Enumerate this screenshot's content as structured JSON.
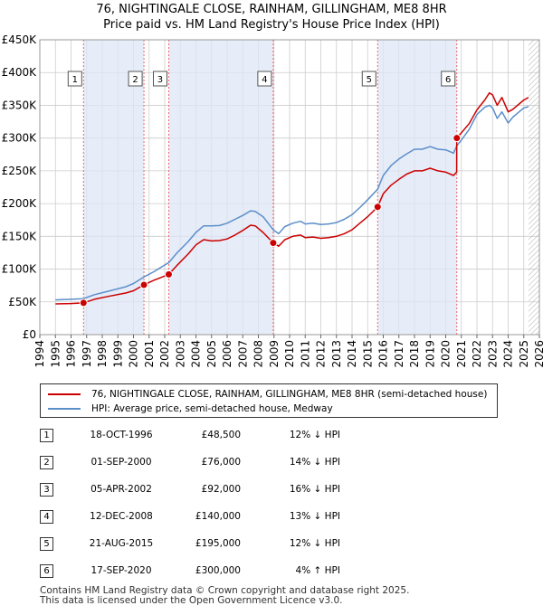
{
  "title_line1": "76, NIGHTINGALE CLOSE, RAINHAM, GILLINGHAM, ME8 8HR",
  "title_line2": "Price paid vs. HM Land Registry's House Price Index (HPI)",
  "legend": {
    "property": "76, NIGHTINGALE CLOSE, RAINHAM, GILLINGHAM, ME8 8HR (semi-detached house)",
    "hpi": "HPI: Average price, semi-detached house, Medway"
  },
  "colors": {
    "property_line": "#cc0000",
    "hpi_line": "#5b8fc9",
    "shade": "#dde6f5",
    "sale_vline": "#ee6666",
    "grid": "#cccccc"
  },
  "chart_data": {
    "type": "line",
    "xlim": [
      1994,
      2026
    ],
    "ylim": [
      0,
      450000
    ],
    "y_ticks": [
      {
        "value": 0,
        "label": "£0"
      },
      {
        "value": 50000,
        "label": "£50K"
      },
      {
        "value": 100000,
        "label": "£100K"
      },
      {
        "value": 150000,
        "label": "£150K"
      },
      {
        "value": 200000,
        "label": "£200K"
      },
      {
        "value": 250000,
        "label": "£250K"
      },
      {
        "value": 300000,
        "label": "£300K"
      },
      {
        "value": 350000,
        "label": "£350K"
      },
      {
        "value": 400000,
        "label": "£400K"
      },
      {
        "value": 450000,
        "label": "£450K"
      }
    ],
    "x_ticks": [
      "1994",
      "1995",
      "1996",
      "1997",
      "1998",
      "1999",
      "2000",
      "2001",
      "2002",
      "2003",
      "2004",
      "2005",
      "2006",
      "2007",
      "2008",
      "2009",
      "2010",
      "2011",
      "2012",
      "2013",
      "2014",
      "2015",
      "2016",
      "2017",
      "2018",
      "2019",
      "2020",
      "2021",
      "2022",
      "2023",
      "2024",
      "2025",
      "2026"
    ],
    "shaded_spans": [
      [
        1996.8,
        2000.67
      ],
      [
        2002.26,
        2008.95
      ],
      [
        2015.64,
        2020.71
      ]
    ],
    "hatched_from": 2025.3,
    "series": [
      {
        "name": "76, NIGHTINGALE CLOSE, RAINHAM, GILLINGHAM, ME8 8HR (semi-detached house)",
        "x": [
          1995.0,
          1996.0,
          1996.8,
          1997.5,
          1998.5,
          1999.5,
          2000.0,
          2000.67,
          2001.3,
          2002.26,
          2002.8,
          2003.5,
          2004.0,
          2004.5,
          2005.0,
          2005.5,
          2006.0,
          2006.5,
          2007.0,
          2007.5,
          2007.8,
          2008.3,
          2008.95,
          2009.3,
          2009.7,
          2010.2,
          2010.7,
          2011.0,
          2011.5,
          2012.0,
          2012.5,
          2013.0,
          2013.5,
          2014.0,
          2014.5,
          2015.0,
          2015.64,
          2016.0,
          2016.5,
          2017.0,
          2017.5,
          2018.0,
          2018.5,
          2019.0,
          2019.5,
          2020.0,
          2020.5,
          2020.7,
          2020.71,
          2021.0,
          2021.5,
          2022.0,
          2022.5,
          2022.8,
          2023.0,
          2023.3,
          2023.6,
          2024.0,
          2024.3,
          2024.7,
          2025.0,
          2025.3
        ],
        "values": [
          47000,
          47500,
          48500,
          54000,
          59000,
          63500,
          67000,
          76000,
          83000,
          92000,
          106000,
          123000,
          137000,
          145000,
          143000,
          143500,
          146000,
          152000,
          159000,
          167000,
          166000,
          156000,
          140000,
          135000,
          145000,
          150000,
          152000,
          148000,
          149000,
          147000,
          148000,
          150000,
          154000,
          160000,
          170000,
          180000,
          195000,
          215000,
          228000,
          237000,
          245000,
          250000,
          250000,
          254000,
          250000,
          248000,
          243000,
          248000,
          300000,
          308000,
          322000,
          343000,
          358000,
          369000,
          366000,
          350000,
          362000,
          340000,
          344000,
          352000,
          358000,
          362000
        ]
      },
      {
        "name": "HPI: Average price, semi-detached house, Medway",
        "x": [
          1995.0,
          1996.0,
          1996.8,
          1997.5,
          1998.5,
          1999.5,
          2000.0,
          2000.67,
          2001.3,
          2002.26,
          2002.8,
          2003.5,
          2004.0,
          2004.5,
          2005.0,
          2005.5,
          2006.0,
          2006.5,
          2007.0,
          2007.5,
          2007.8,
          2008.3,
          2008.95,
          2009.3,
          2009.7,
          2010.2,
          2010.7,
          2011.0,
          2011.5,
          2012.0,
          2012.5,
          2013.0,
          2013.5,
          2014.0,
          2014.5,
          2015.0,
          2015.64,
          2016.0,
          2016.5,
          2017.0,
          2017.5,
          2018.0,
          2018.5,
          2019.0,
          2019.5,
          2020.0,
          2020.5,
          2020.71,
          2021.0,
          2021.5,
          2022.0,
          2022.5,
          2022.8,
          2023.0,
          2023.3,
          2023.6,
          2024.0,
          2024.3,
          2024.7,
          2025.0,
          2025.3
        ],
        "values": [
          53000,
          54000,
          55000,
          61000,
          67000,
          73000,
          78000,
          88000,
          96000,
          110000,
          125000,
          142000,
          156000,
          166000,
          166000,
          166500,
          170000,
          176000,
          182000,
          189000,
          188000,
          180000,
          160000,
          154000,
          165000,
          170000,
          173000,
          169000,
          170000,
          168000,
          169000,
          171000,
          176000,
          183000,
          194000,
          206000,
          222000,
          243000,
          258000,
          268000,
          276000,
          283000,
          283000,
          287000,
          283000,
          282000,
          277000,
          288000,
          297000,
          313000,
          336000,
          347000,
          350000,
          346000,
          330000,
          340000,
          323000,
          332000,
          340000,
          346000,
          348000
        ]
      }
    ],
    "sales": [
      {
        "n": "1",
        "x": 1996.8,
        "price": 48500
      },
      {
        "n": "2",
        "x": 2000.67,
        "price": 76000
      },
      {
        "n": "3",
        "x": 2002.26,
        "price": 92000
      },
      {
        "n": "4",
        "x": 2008.95,
        "price": 140000
      },
      {
        "n": "5",
        "x": 2015.64,
        "price": 195000
      },
      {
        "n": "6",
        "x": 2020.71,
        "price": 300000
      }
    ]
  },
  "sales_table": [
    {
      "n": "1",
      "date": "18-OCT-1996",
      "price": "£48,500",
      "hpi": "12% ↓ HPI"
    },
    {
      "n": "2",
      "date": "01-SEP-2000",
      "price": "£76,000",
      "hpi": "14% ↓ HPI"
    },
    {
      "n": "3",
      "date": "05-APR-2002",
      "price": "£92,000",
      "hpi": "16% ↓ HPI"
    },
    {
      "n": "4",
      "date": "12-DEC-2008",
      "price": "£140,000",
      "hpi": "13% ↓ HPI"
    },
    {
      "n": "5",
      "date": "21-AUG-2015",
      "price": "£195,000",
      "hpi": "12% ↓ HPI"
    },
    {
      "n": "6",
      "date": "17-SEP-2020",
      "price": "£300,000",
      "hpi": "4% ↑ HPI"
    }
  ],
  "footer": {
    "line1": "Contains HM Land Registry data © Crown copyright and database right 2025.",
    "line2": "This data is licensed under the Open Government Licence v3.0."
  }
}
